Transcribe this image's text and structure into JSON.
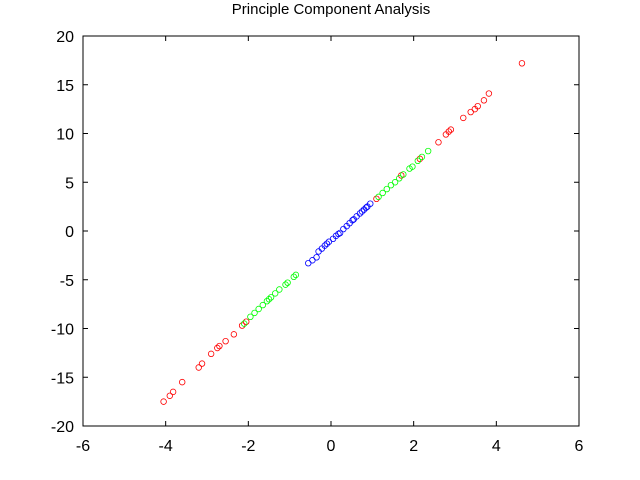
{
  "chart_data": {
    "type": "scatter",
    "title": "Principle Component Analysis",
    "xlabel": "",
    "ylabel": "",
    "xlim": [
      -6,
      6
    ],
    "ylim": [
      -20,
      20
    ],
    "xticks": [
      -6,
      -4,
      -2,
      0,
      2,
      4,
      6
    ],
    "yticks": [
      -20,
      -15,
      -10,
      -5,
      0,
      5,
      10,
      15,
      20
    ],
    "grid": false,
    "marker": "open-circle",
    "series": [
      {
        "color": "#ff0000",
        "points": [
          [
            -4.05,
            -17.5
          ],
          [
            -3.9,
            -16.9
          ],
          [
            -3.82,
            -16.5
          ],
          [
            -3.6,
            -15.5
          ],
          [
            -3.2,
            -14.0
          ],
          [
            -3.12,
            -13.6
          ],
          [
            -2.9,
            -12.6
          ],
          [
            -2.75,
            -12.0
          ],
          [
            -2.7,
            -11.8
          ],
          [
            -2.55,
            -11.3
          ],
          [
            -2.35,
            -10.6
          ],
          [
            -2.15,
            -9.7
          ],
          [
            -2.05,
            -9.3
          ],
          [
            1.1,
            3.3
          ],
          [
            1.7,
            5.7
          ],
          [
            2.15,
            7.4
          ],
          [
            2.6,
            9.1
          ],
          [
            2.78,
            9.9
          ],
          [
            2.85,
            10.2
          ],
          [
            2.9,
            10.4
          ],
          [
            3.2,
            11.6
          ],
          [
            3.38,
            12.2
          ],
          [
            3.48,
            12.5
          ],
          [
            3.55,
            12.8
          ],
          [
            3.7,
            13.4
          ],
          [
            3.82,
            14.1
          ],
          [
            4.62,
            17.2
          ]
        ]
      },
      {
        "color": "#00ff00",
        "points": [
          [
            -2.1,
            -9.5
          ],
          [
            -1.95,
            -8.8
          ],
          [
            -1.85,
            -8.4
          ],
          [
            -1.75,
            -8.0
          ],
          [
            -1.65,
            -7.6
          ],
          [
            -1.55,
            -7.2
          ],
          [
            -1.5,
            -7.0
          ],
          [
            -1.45,
            -6.8
          ],
          [
            -1.35,
            -6.4
          ],
          [
            -1.25,
            -6.0
          ],
          [
            -1.1,
            -5.5
          ],
          [
            -1.05,
            -5.3
          ],
          [
            -0.9,
            -4.7
          ],
          [
            -0.85,
            -4.5
          ],
          [
            1.15,
            3.5
          ],
          [
            1.25,
            3.9
          ],
          [
            1.35,
            4.3
          ],
          [
            1.45,
            4.7
          ],
          [
            1.55,
            5.0
          ],
          [
            1.65,
            5.4
          ],
          [
            1.75,
            5.8
          ],
          [
            1.9,
            6.4
          ],
          [
            1.97,
            6.6
          ],
          [
            2.1,
            7.2
          ],
          [
            2.2,
            7.6
          ],
          [
            2.35,
            8.2
          ]
        ]
      },
      {
        "color": "#0000ff",
        "points": [
          [
            -0.55,
            -3.3
          ],
          [
            -0.45,
            -3.0
          ],
          [
            -0.35,
            -2.7
          ],
          [
            -0.3,
            -2.1
          ],
          [
            -0.22,
            -1.8
          ],
          [
            -0.15,
            -1.5
          ],
          [
            -0.05,
            -1.1
          ],
          [
            0.05,
            -0.8
          ],
          [
            0.12,
            -0.5
          ],
          [
            0.22,
            -0.2
          ],
          [
            0.3,
            0.2
          ],
          [
            0.38,
            0.5
          ],
          [
            0.45,
            0.8
          ],
          [
            0.52,
            1.1
          ],
          [
            0.62,
            1.5
          ],
          [
            0.7,
            1.8
          ],
          [
            0.8,
            2.2
          ],
          [
            0.88,
            2.5
          ],
          [
            0.95,
            2.8
          ],
          [
            -0.1,
            -1.3
          ],
          [
            0.18,
            -0.3
          ],
          [
            0.55,
            1.2
          ],
          [
            0.75,
            2.0
          ],
          [
            0.85,
            2.4
          ]
        ]
      }
    ]
  }
}
